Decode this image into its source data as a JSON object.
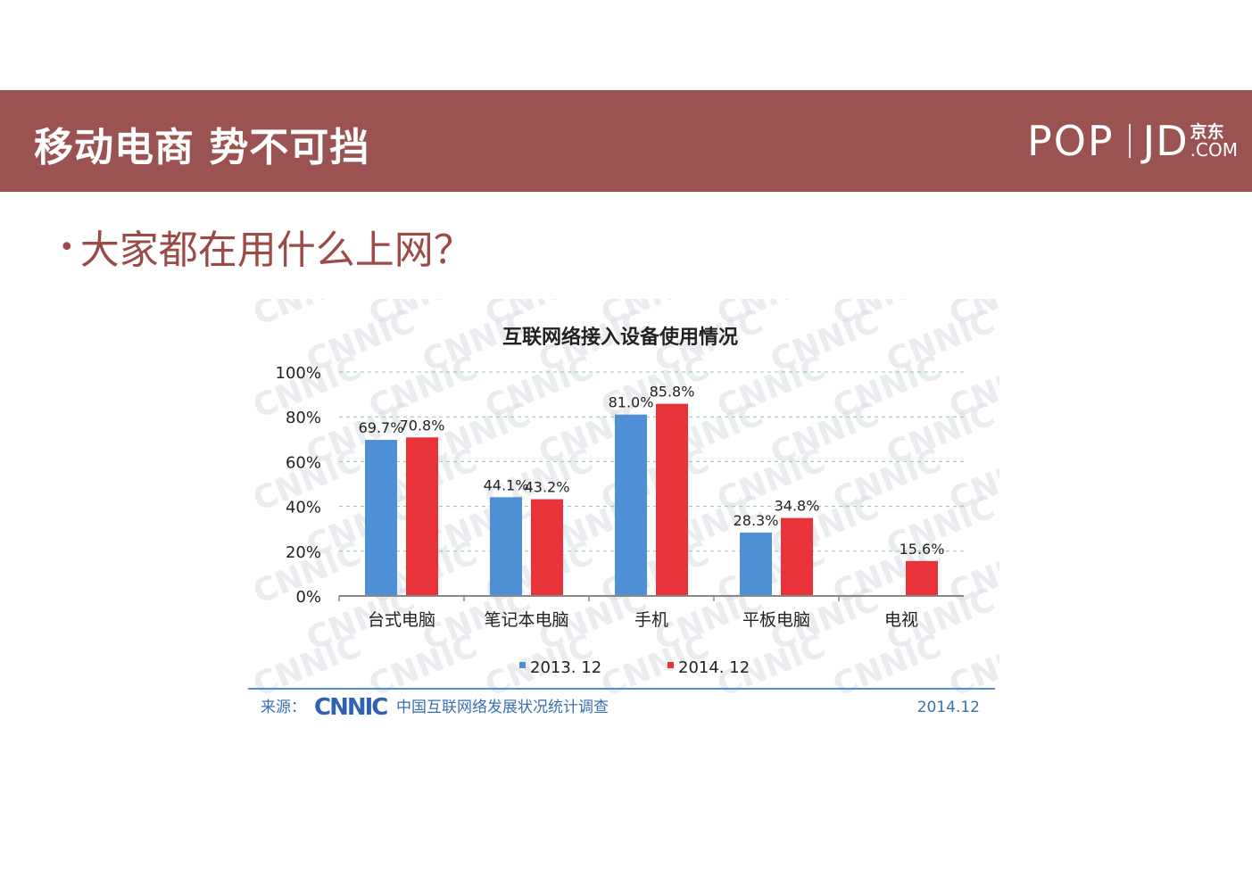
{
  "header": {
    "title": "移动电商 势不可挡",
    "brand_pop": "POP",
    "brand_jd": "JD",
    "brand_cn": "京东",
    "brand_com": ".COM"
  },
  "subtitle": {
    "bullet": "•",
    "text": "大家都在用什么上网？"
  },
  "source": {
    "prefix": "来源：",
    "logo": "CNNIC",
    "org": "中国互联网络发展状况统计调查",
    "date": "2014.12"
  },
  "watermark": "CNNIC",
  "chart_data": {
    "type": "bar",
    "title": "互联网络接入设备使用情况",
    "categories": [
      "台式电脑",
      "笔记本电脑",
      "手机",
      "平板电脑",
      "电视"
    ],
    "series": [
      {
        "name": "2013. 12",
        "color": "#4f8fd6",
        "values": [
          69.7,
          44.1,
          81.0,
          28.3,
          null
        ],
        "labels": [
          "69.7%",
          "44.1%",
          "81.0%",
          "28.3%",
          ""
        ]
      },
      {
        "name": "2014. 12",
        "color": "#e8333a",
        "values": [
          70.8,
          43.2,
          85.8,
          34.8,
          15.6
        ],
        "labels": [
          "70.8%",
          "43.2%",
          "85.8%",
          "34.8%",
          "15.6%"
        ]
      }
    ],
    "yticks": [
      "0%",
      "20%",
      "40%",
      "60%",
      "80%",
      "100%"
    ],
    "ylim": [
      0,
      100
    ],
    "grid": true,
    "legend": "bottom-center",
    "xlabel": "",
    "ylabel": ""
  }
}
